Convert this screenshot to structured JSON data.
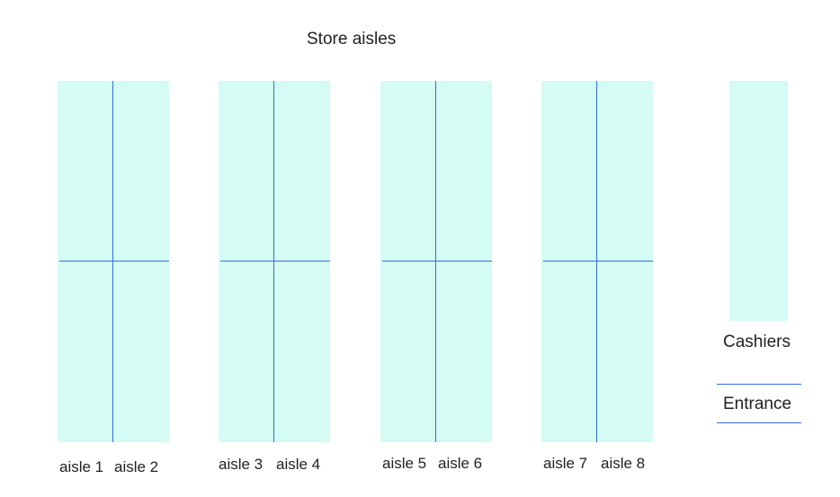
{
  "title": "Store aisles",
  "colors": {
    "shelf_fill": "#d4fbf4",
    "divider": "#2f6fe0",
    "text": "#222222"
  },
  "shelves": [
    {
      "left_label": "aisle 1",
      "right_label": "aisle 2"
    },
    {
      "left_label": "aisle 3",
      "right_label": "aisle 4"
    },
    {
      "left_label": "aisle 5",
      "right_label": "aisle 6"
    },
    {
      "left_label": "aisle 7",
      "right_label": "aisle 8"
    }
  ],
  "cashiers": {
    "label": "Cashiers"
  },
  "entrance": {
    "label": "Entrance"
  }
}
